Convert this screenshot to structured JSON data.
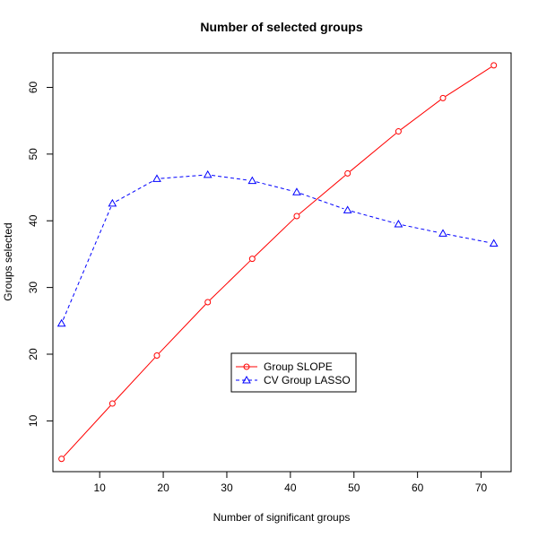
{
  "chart_data": {
    "type": "line",
    "title": "Number of selected groups",
    "xlabel": "Number of significant groups",
    "ylabel": "Groups selected",
    "xlim": [
      2.64,
      74.72
    ],
    "ylim": [
      2.39,
      65.17
    ],
    "xticks": [
      10,
      20,
      30,
      40,
      50,
      60,
      70
    ],
    "yticks": [
      10,
      20,
      30,
      40,
      50,
      60
    ],
    "grid": false,
    "legend_position": "center",
    "x": [
      4,
      12,
      19,
      27,
      34,
      41,
      49,
      57,
      64,
      72
    ],
    "series": [
      {
        "name": "Group SLOPE",
        "color": "#ff0000",
        "line_style": "solid",
        "marker": "circle",
        "values": [
          4.3,
          12.6,
          19.8,
          27.8,
          34.3,
          40.7,
          47.1,
          53.4,
          58.4,
          63.3
        ]
      },
      {
        "name": "CV Group LASSO",
        "color": "#0000ff",
        "line_style": "dashed",
        "marker": "triangle",
        "values": [
          24.6,
          42.6,
          46.3,
          46.9,
          46.0,
          44.3,
          41.6,
          39.5,
          38.1,
          36.6
        ]
      }
    ]
  }
}
